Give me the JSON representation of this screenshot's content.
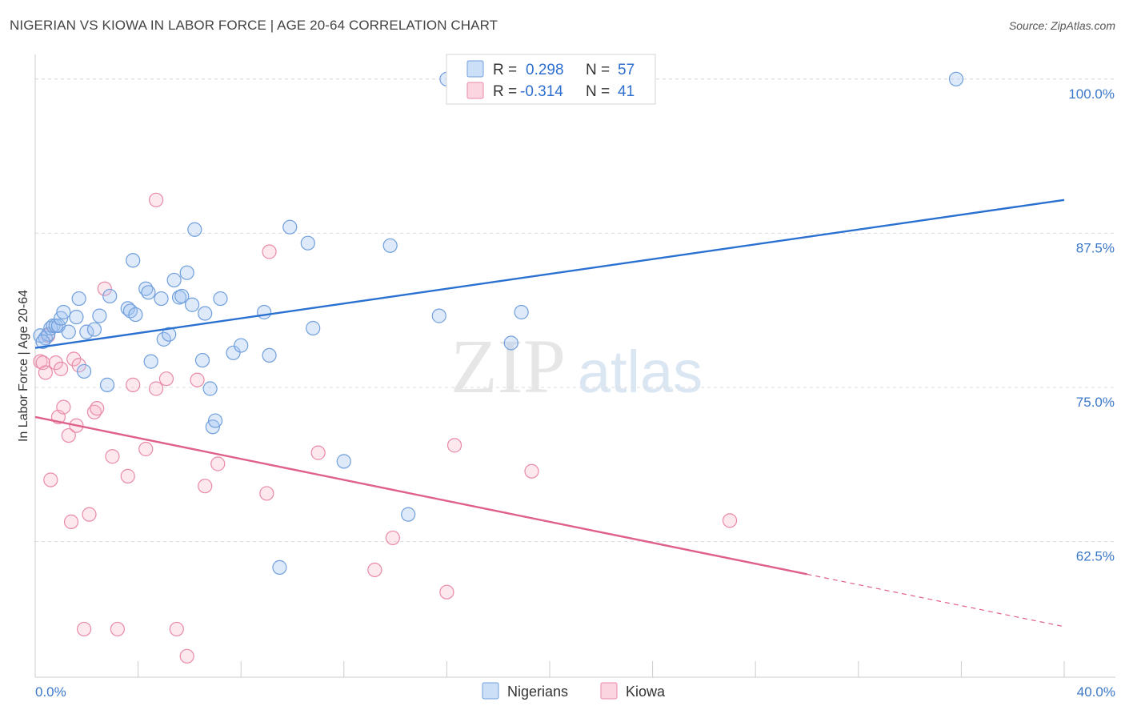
{
  "title": "NIGERIAN VS KIOWA IN LABOR FORCE | AGE 20-64 CORRELATION CHART",
  "source": "Source: ZipAtlas.com",
  "watermark": {
    "zip": "ZIP",
    "atlas": "atlas"
  },
  "colors": {
    "blue_fill": "rgba(160,196,240,0.35)",
    "blue_stroke": "#6f9fdc",
    "blue_line": "#2a70d0",
    "pink_fill": "rgba(248,180,200,0.30)",
    "pink_stroke": "#e98aa8",
    "pink_line": "#e0608c",
    "tick_label": "#3b78c9",
    "grid": "#dddddd"
  },
  "legend": {
    "rows": [
      {
        "r_label": "R =",
        "r_value": "0.298",
        "n_label": "N =",
        "n_value": "57"
      },
      {
        "r_label": "R =",
        "r_value": "-0.314",
        "n_label": "N =",
        "n_value": "41"
      }
    ]
  },
  "chart_data": {
    "type": "scatter",
    "xlabel": "",
    "ylabel": "In Labor Force | Age 20-64",
    "xlim": [
      0,
      40
    ],
    "ylim": [
      51.5,
      102
    ],
    "x_tick_labels": [
      "0.0%",
      "40.0%"
    ],
    "y_ticks": [
      62.5,
      75.0,
      87.5,
      100.0
    ],
    "y_tick_labels": [
      "62.5%",
      "75.0%",
      "87.5%",
      "100.0%"
    ],
    "series": [
      {
        "name": "Nigerians",
        "r": 0.298,
        "n": 57,
        "trend": {
          "x": [
            0,
            40
          ],
          "y": [
            78.2,
            90.2
          ],
          "dashed_from": null
        },
        "points": [
          [
            0.2,
            79.2
          ],
          [
            0.4,
            79.0
          ],
          [
            0.5,
            79.3
          ],
          [
            0.6,
            79.8
          ],
          [
            0.7,
            80.0
          ],
          [
            0.8,
            80.0
          ],
          [
            0.9,
            80.0
          ],
          [
            1.0,
            80.6
          ],
          [
            1.1,
            81.1
          ],
          [
            1.3,
            79.5
          ],
          [
            1.6,
            80.7
          ],
          [
            1.7,
            82.2
          ],
          [
            1.9,
            76.3
          ],
          [
            2.0,
            79.5
          ],
          [
            2.3,
            79.7
          ],
          [
            2.8,
            75.2
          ],
          [
            2.9,
            82.4
          ],
          [
            3.6,
            81.4
          ],
          [
            3.7,
            81.2
          ],
          [
            3.8,
            85.3
          ],
          [
            4.3,
            83.0
          ],
          [
            4.4,
            82.7
          ],
          [
            4.5,
            77.1
          ],
          [
            4.9,
            82.2
          ],
          [
            5.0,
            78.9
          ],
          [
            5.2,
            79.3
          ],
          [
            5.4,
            83.7
          ],
          [
            5.6,
            82.3
          ],
          [
            5.7,
            82.4
          ],
          [
            5.9,
            84.3
          ],
          [
            6.1,
            81.7
          ],
          [
            6.2,
            87.8
          ],
          [
            6.5,
            77.2
          ],
          [
            6.6,
            81.0
          ],
          [
            6.8,
            74.9
          ],
          [
            6.9,
            71.8
          ],
          [
            7.0,
            72.3
          ],
          [
            7.2,
            82.2
          ],
          [
            7.7,
            77.8
          ],
          [
            8.0,
            78.4
          ],
          [
            8.9,
            81.1
          ],
          [
            9.1,
            77.6
          ],
          [
            9.5,
            60.4
          ],
          [
            9.9,
            88.0
          ],
          [
            10.6,
            86.7
          ],
          [
            10.8,
            79.8
          ],
          [
            12.0,
            69.0
          ],
          [
            13.8,
            86.5
          ],
          [
            14.5,
            64.7
          ],
          [
            15.7,
            80.8
          ],
          [
            16.0,
            100.0
          ],
          [
            18.5,
            78.6
          ],
          [
            18.9,
            81.1
          ],
          [
            35.8,
            100.0
          ],
          [
            0.3,
            78.7
          ],
          [
            2.5,
            80.8
          ],
          [
            3.9,
            80.9
          ]
        ]
      },
      {
        "name": "Kiowa",
        "r": -0.314,
        "n": 41,
        "trend": {
          "x": [
            0,
            40
          ],
          "y": [
            72.6,
            55.6
          ],
          "dashed_from": 30.0
        },
        "points": [
          [
            0.2,
            77.1
          ],
          [
            0.3,
            77.0
          ],
          [
            0.4,
            76.2
          ],
          [
            0.5,
            79.2
          ],
          [
            0.6,
            67.5
          ],
          [
            0.8,
            77.0
          ],
          [
            0.9,
            72.6
          ],
          [
            1.0,
            76.5
          ],
          [
            1.1,
            73.4
          ],
          [
            1.3,
            71.1
          ],
          [
            1.4,
            64.1
          ],
          [
            1.5,
            77.3
          ],
          [
            1.6,
            71.9
          ],
          [
            1.7,
            76.8
          ],
          [
            1.9,
            55.4
          ],
          [
            2.1,
            64.7
          ],
          [
            2.3,
            73.0
          ],
          [
            2.4,
            73.3
          ],
          [
            2.7,
            83.0
          ],
          [
            3.0,
            69.4
          ],
          [
            3.2,
            55.4
          ],
          [
            3.6,
            67.8
          ],
          [
            3.8,
            75.2
          ],
          [
            4.3,
            70.0
          ],
          [
            4.7,
            90.2
          ],
          [
            4.7,
            74.9
          ],
          [
            5.1,
            75.7
          ],
          [
            5.5,
            55.4
          ],
          [
            5.9,
            53.2
          ],
          [
            6.3,
            75.6
          ],
          [
            6.6,
            67.0
          ],
          [
            7.1,
            68.8
          ],
          [
            9.0,
            66.4
          ],
          [
            9.1,
            86.0
          ],
          [
            11.0,
            69.7
          ],
          [
            13.2,
            60.2
          ],
          [
            13.9,
            62.8
          ],
          [
            16.0,
            58.4
          ],
          [
            16.3,
            70.3
          ],
          [
            19.3,
            68.2
          ],
          [
            27.0,
            64.2
          ]
        ]
      }
    ]
  }
}
